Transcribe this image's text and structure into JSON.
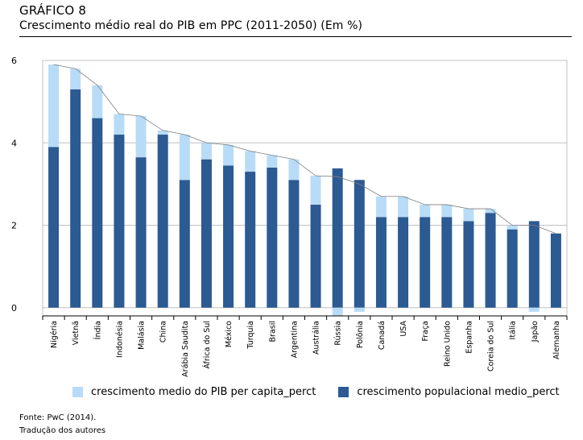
{
  "figure_label": "GRÁFICO 8",
  "figure_title": "Crescimento médio real do PIB em PPC (2011-2050) (Em %)",
  "source_line": "Fonte: PwC (2014).",
  "note_line": "Tradução dos autores",
  "colors": {
    "light_series": "#b8dcf7",
    "dark_series": "#2c5a92",
    "grid": "#c0c0c0",
    "total_line": "#7f7f7f"
  },
  "chart_data": {
    "type": "bar",
    "stacked": true,
    "title": "Crescimento médio real do PIB em PPC (2011-2050) (Em %)",
    "xlabel": "",
    "ylabel": "",
    "ylim": [
      -0.2,
      6.0
    ],
    "yticks": [
      0,
      2,
      4,
      6
    ],
    "grid": true,
    "legend_position": "bottom",
    "categories": [
      "Nigéria",
      "Vietnã",
      "Índia",
      "Indonésia",
      "Malásia",
      "China",
      "Arábia Saudita",
      "África do Sul",
      "México",
      "Turquia",
      "Brasil",
      "Argentina",
      "Austrália",
      "Rússia",
      "Polônia",
      "Canadá",
      "USA",
      "Fraça",
      "Reino Unido",
      "Espanha",
      "Coreia do Sul",
      "Itália",
      "Japão",
      "Alemanha"
    ],
    "series": [
      {
        "name": "crescimento medio do PIB per capita_perct",
        "values": [
          2.0,
          0.5,
          0.8,
          0.5,
          1.0,
          0.1,
          1.1,
          0.4,
          0.5,
          0.5,
          0.3,
          0.5,
          0.7,
          -0.2,
          -0.1,
          0.5,
          0.5,
          0.3,
          0.3,
          0.3,
          0.1,
          0.1,
          -0.1,
          0.0
        ]
      },
      {
        "name": "crescimento populacional medio_perct",
        "values": [
          3.9,
          5.3,
          4.6,
          4.2,
          3.65,
          4.2,
          3.1,
          3.6,
          3.45,
          3.3,
          3.4,
          3.1,
          2.5,
          3.38,
          3.1,
          2.2,
          2.2,
          2.2,
          2.2,
          2.1,
          2.3,
          1.9,
          2.1,
          1.8
        ]
      }
    ],
    "total_line": [
      5.9,
      5.8,
      5.4,
      4.7,
      4.65,
      4.3,
      4.2,
      4.0,
      3.95,
      3.8,
      3.7,
      3.6,
      3.2,
      3.18,
      3.0,
      2.7,
      2.7,
      2.5,
      2.5,
      2.4,
      2.4,
      2.0,
      2.0,
      1.8
    ]
  }
}
